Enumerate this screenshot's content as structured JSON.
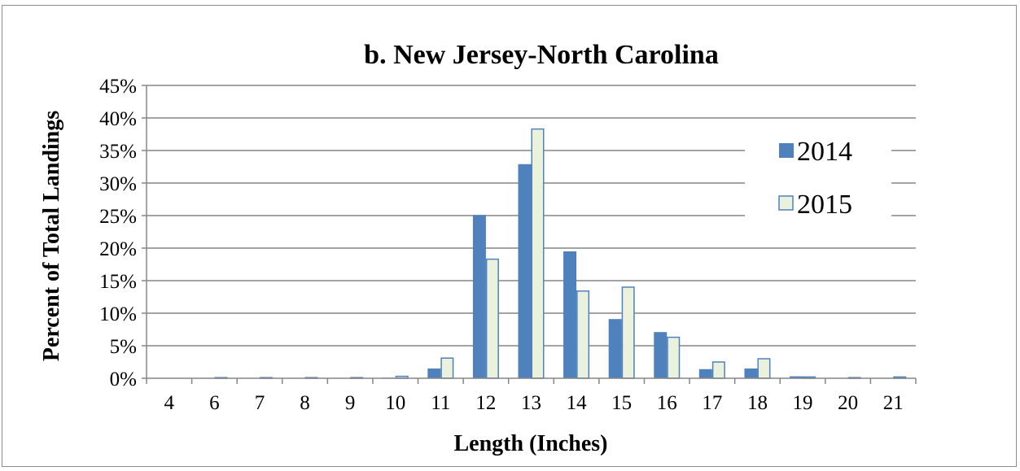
{
  "chart_data": {
    "type": "bar",
    "title": "b. New Jersey-North Carolina",
    "xlabel": "Length (Inches)",
    "ylabel": "Percent of Total Landings",
    "categories": [
      "4",
      "6",
      "7",
      "8",
      "9",
      "10",
      "11",
      "12",
      "13",
      "14",
      "15",
      "16",
      "17",
      "18",
      "19",
      "20",
      "21"
    ],
    "ylim": [
      0,
      45
    ],
    "yticks": [
      "0%",
      "5%",
      "10%",
      "15%",
      "20%",
      "25%",
      "30%",
      "35%",
      "40%",
      "45%"
    ],
    "grid": true,
    "legend_position": "right",
    "series": [
      {
        "name": "2014",
        "color": "#4f81bd",
        "values": [
          0,
          0,
          0,
          0,
          0,
          0.1,
          1.5,
          25.1,
          32.9,
          19.5,
          9.1,
          7.1,
          1.4,
          1.5,
          0.3,
          0,
          0
        ]
      },
      {
        "name": "2015",
        "color": "#eaf1dd",
        "stroke": "#4f81bd",
        "values": [
          0,
          0.1,
          0.1,
          0.1,
          0.1,
          0.3,
          3.1,
          18.3,
          38.3,
          13.4,
          14.0,
          6.3,
          2.5,
          3.0,
          0.2,
          0.1,
          0.2
        ]
      }
    ]
  }
}
